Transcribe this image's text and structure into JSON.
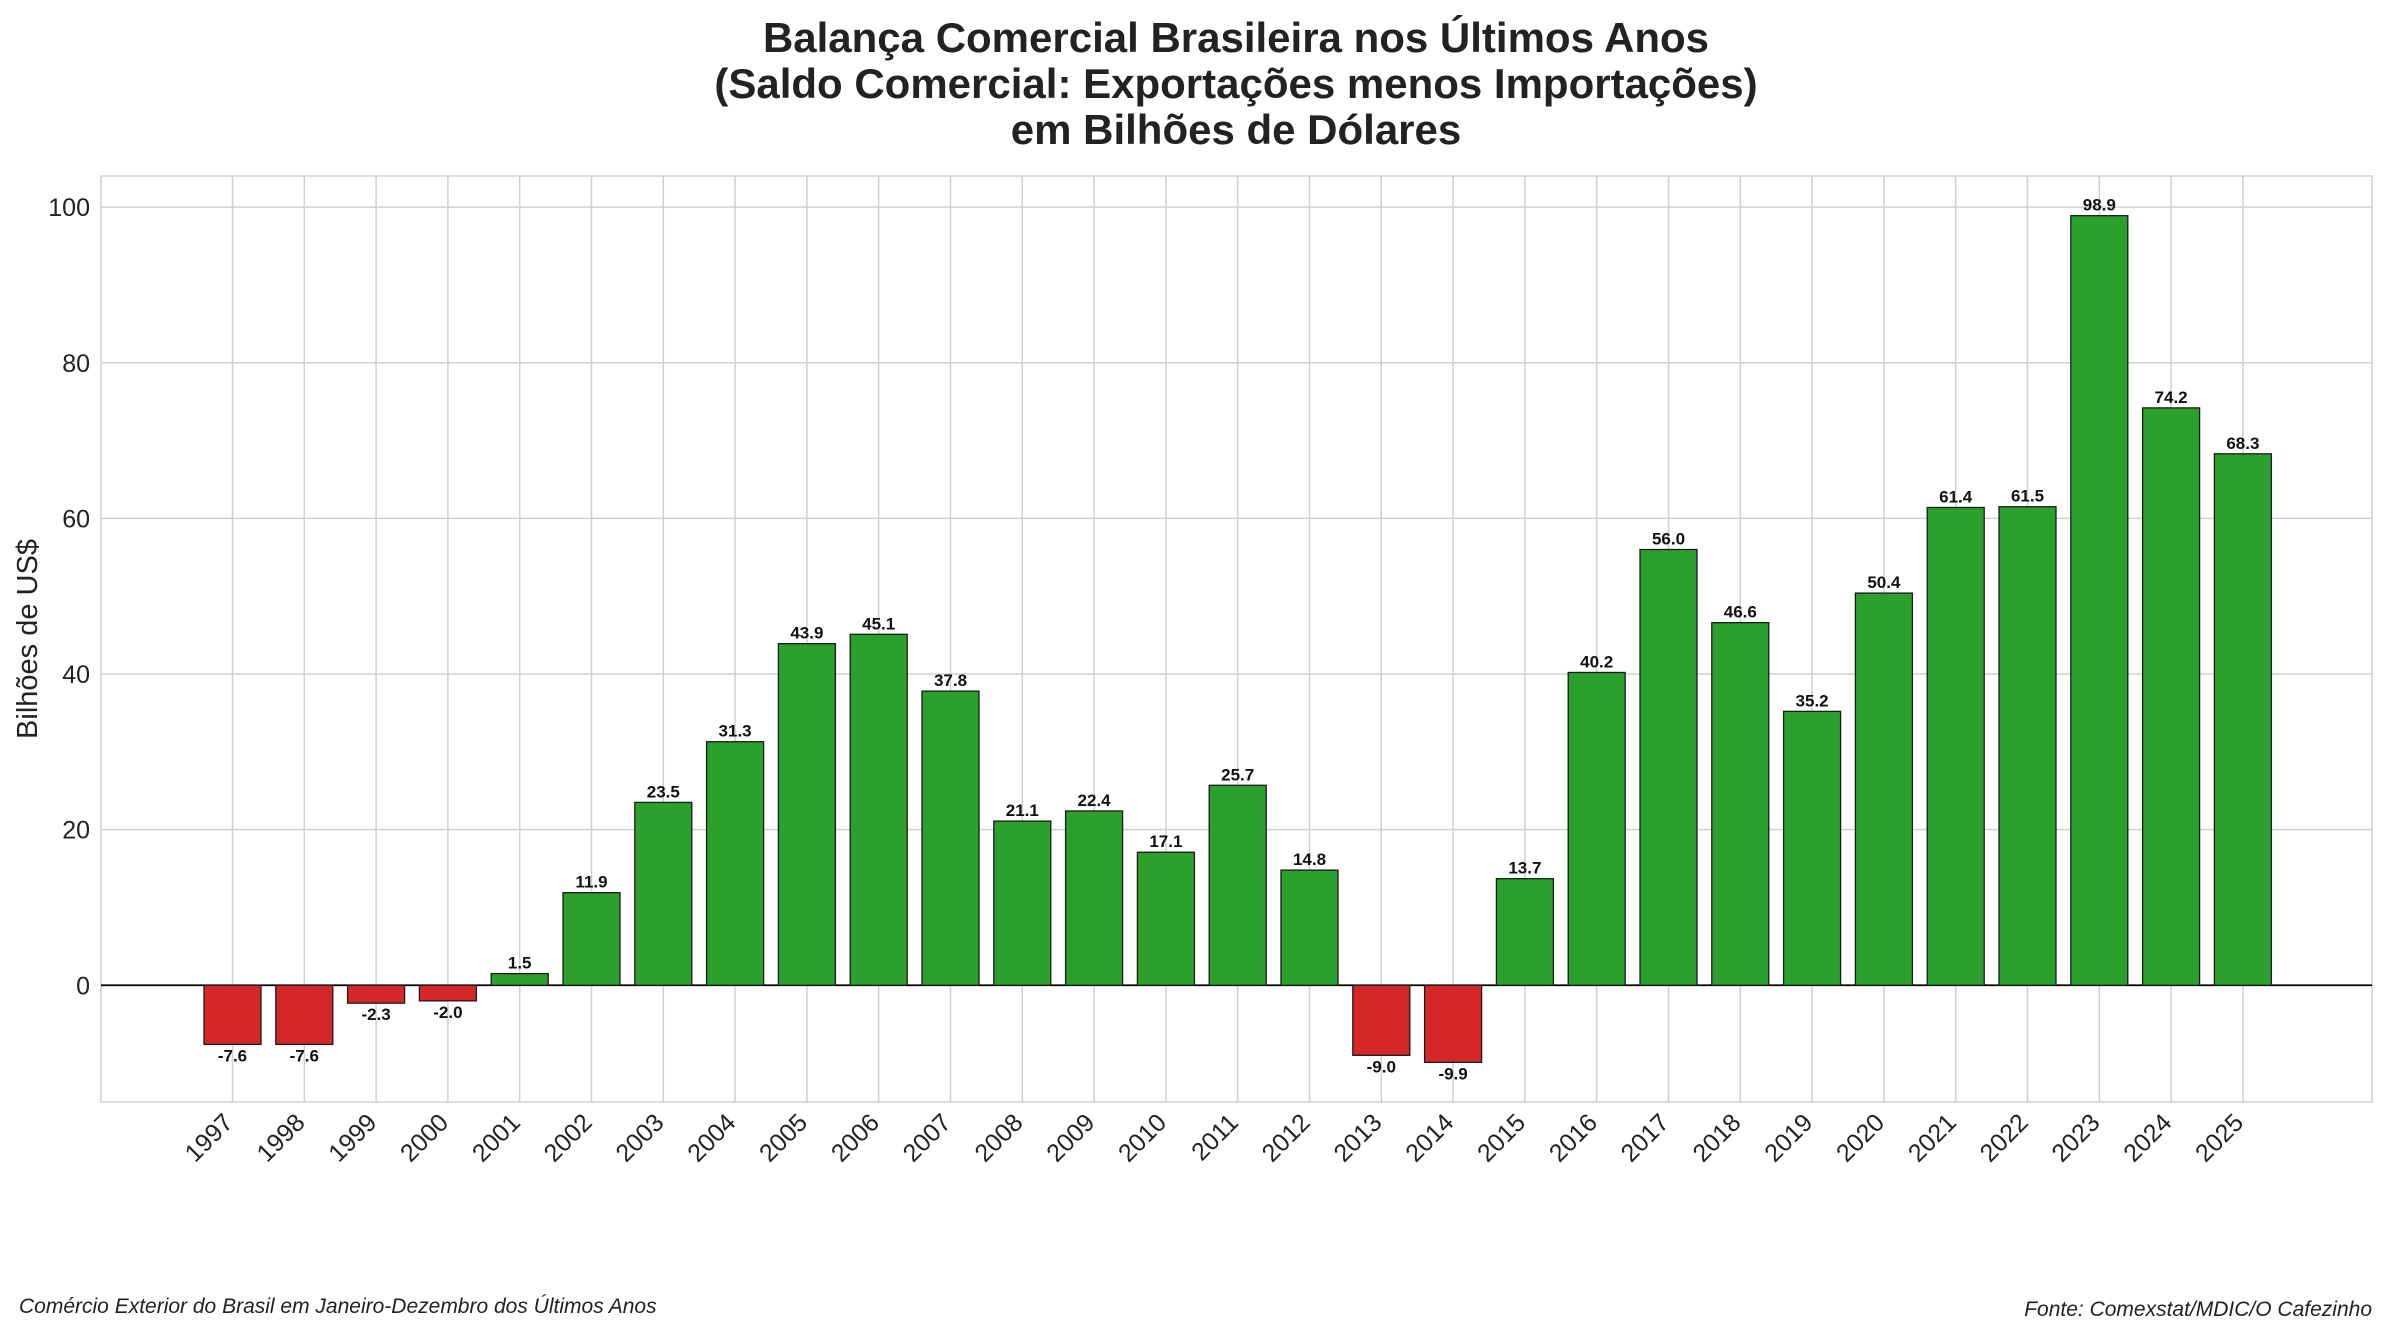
{
  "chart_data": {
    "type": "bar",
    "title": "Balança Comercial Brasileira nos Últimos Anos\n(Saldo Comercial: Exportações menos Importações)\nem Bilhões de Dólares",
    "title_lines": [
      "Balança Comercial Brasileira nos Últimos Anos",
      "(Saldo Comercial: Exportações menos Importações)",
      "em Bilhões de Dólares"
    ],
    "xlabel": "",
    "ylabel": "Bilhões de US$",
    "ylim": [
      -15,
      104
    ],
    "yticks": [
      0,
      20,
      40,
      60,
      80,
      100
    ],
    "grid": true,
    "categories": [
      "1997",
      "1998",
      "1999",
      "2000",
      "2001",
      "2002",
      "2003",
      "2004",
      "2005",
      "2006",
      "2007",
      "2008",
      "2009",
      "2010",
      "2011",
      "2012",
      "2013",
      "2014",
      "2015",
      "2016",
      "2017",
      "2018",
      "2019",
      "2020",
      "2021",
      "2022",
      "2023",
      "2024",
      "2025"
    ],
    "values": [
      -7.6,
      -7.6,
      -2.3,
      -2.0,
      1.5,
      11.9,
      23.5,
      31.3,
      43.9,
      45.1,
      37.8,
      21.1,
      22.4,
      17.1,
      25.7,
      14.8,
      -9.0,
      -9.9,
      13.7,
      40.2,
      56.0,
      46.6,
      35.2,
      50.4,
      61.4,
      61.5,
      98.9,
      74.2,
      68.3
    ],
    "value_labels": [
      "-7.6",
      "-7.6",
      "-2.3",
      "-2.0",
      "1.5",
      "11.9",
      "23.5",
      "31.3",
      "43.9",
      "45.1",
      "37.8",
      "21.1",
      "22.4",
      "17.1",
      "25.7",
      "14.8",
      "-9.0",
      "-9.9",
      "13.7",
      "40.2",
      "56.0",
      "46.6",
      "35.2",
      "50.4",
      "61.4",
      "61.5",
      "98.9",
      "74.2",
      "68.3"
    ],
    "colors": {
      "positive": "#2ca02c",
      "negative": "#d62728"
    },
    "footer_left": "Comércio Exterior do Brasil em Janeiro-Dezembro dos Últimos Anos",
    "footer_right": "Fonte: Comexstat/MDIC/O Cafezinho"
  }
}
